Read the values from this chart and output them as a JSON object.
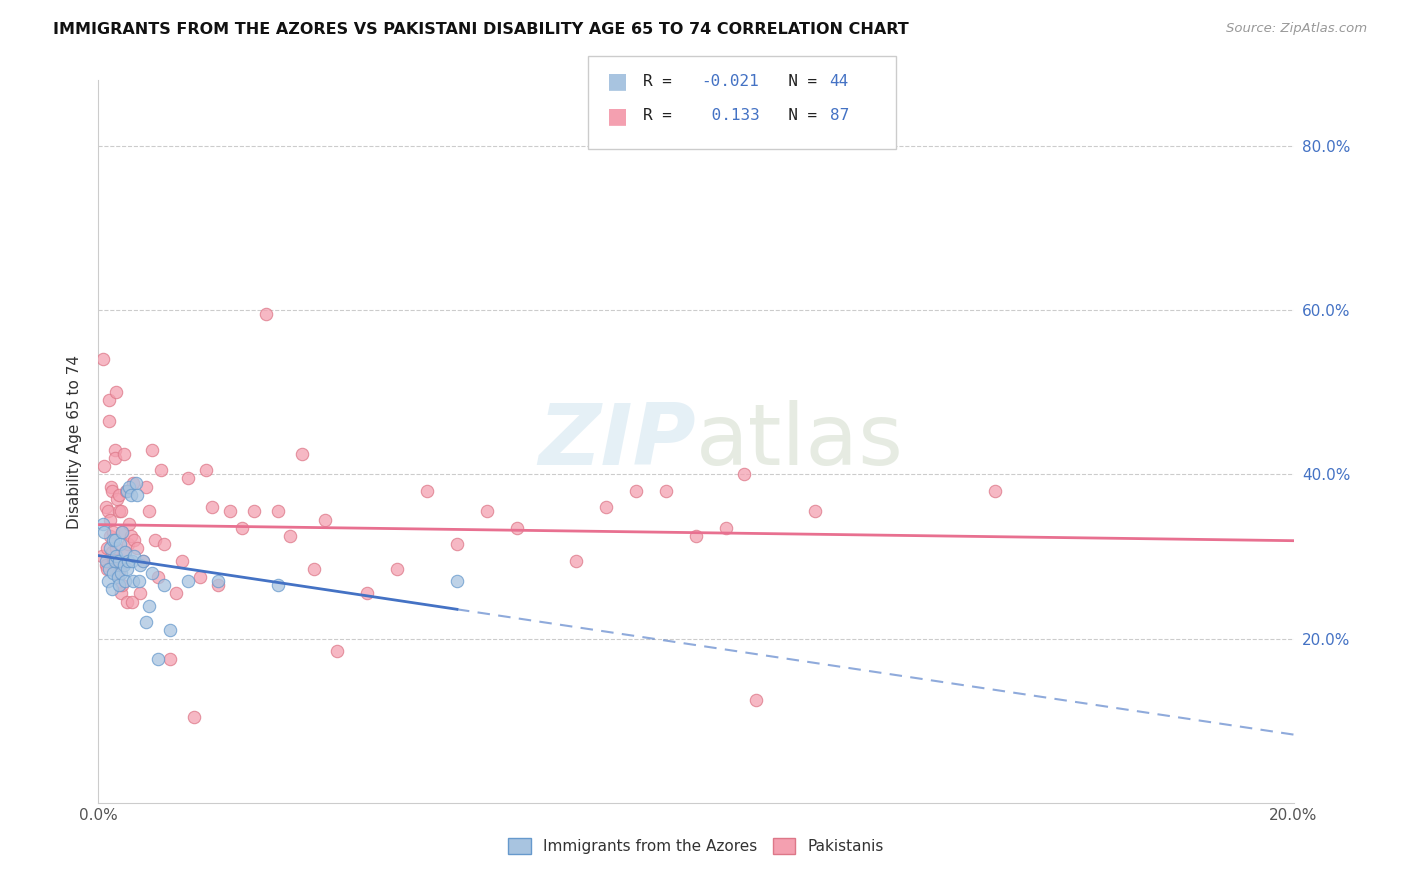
{
  "title": "IMMIGRANTS FROM THE AZORES VS PAKISTANI DISABILITY AGE 65 TO 74 CORRELATION CHART",
  "source": "Source: ZipAtlas.com",
  "ylabel": "Disability Age 65 to 74",
  "ytick_labels": [
    "20.0%",
    "40.0%",
    "60.0%",
    "80.0%"
  ],
  "ytick_values": [
    0.2,
    0.4,
    0.6,
    0.8
  ],
  "xmin": 0.0,
  "xmax": 0.2,
  "ymin": 0.0,
  "ymax": 0.88,
  "legend_label1": "Immigrants from the Azores",
  "legend_label2": "Pakistanis",
  "color_azores_fill": "#a8c4e0",
  "color_azores_edge": "#6699cc",
  "color_pakistani_fill": "#f4a0b0",
  "color_pakistani_edge": "#dd7788",
  "color_azores_line": "#4472c4",
  "color_pakistani_line": "#e87090",
  "azores_x": [
    0.0008,
    0.001,
    0.0013,
    0.0016,
    0.0018,
    0.002,
    0.0022,
    0.0024,
    0.0025,
    0.0027,
    0.0028,
    0.003,
    0.0032,
    0.0034,
    0.0035,
    0.0036,
    0.0038,
    0.004,
    0.0042,
    0.0044,
    0.0045,
    0.0047,
    0.0048,
    0.005,
    0.0052,
    0.0054,
    0.0056,
    0.0058,
    0.006,
    0.0063,
    0.0065,
    0.0068,
    0.007,
    0.0075,
    0.008,
    0.0085,
    0.009,
    0.01,
    0.011,
    0.012,
    0.015,
    0.02,
    0.03,
    0.06
  ],
  "azores_y": [
    0.34,
    0.33,
    0.295,
    0.27,
    0.285,
    0.31,
    0.26,
    0.28,
    0.32,
    0.295,
    0.32,
    0.3,
    0.275,
    0.265,
    0.295,
    0.315,
    0.28,
    0.33,
    0.29,
    0.305,
    0.27,
    0.285,
    0.38,
    0.295,
    0.385,
    0.375,
    0.295,
    0.27,
    0.3,
    0.39,
    0.375,
    0.27,
    0.29,
    0.295,
    0.22,
    0.24,
    0.28,
    0.175,
    0.265,
    0.21,
    0.27,
    0.27,
    0.265,
    0.27
  ],
  "pakistani_x": [
    0.0006,
    0.0008,
    0.001,
    0.0012,
    0.0013,
    0.0014,
    0.0015,
    0.0016,
    0.0017,
    0.0018,
    0.0019,
    0.002,
    0.0021,
    0.0022,
    0.0023,
    0.0024,
    0.0025,
    0.0026,
    0.0027,
    0.0028,
    0.0029,
    0.003,
    0.0031,
    0.0032,
    0.0033,
    0.0034,
    0.0035,
    0.0036,
    0.0037,
    0.0038,
    0.0039,
    0.004,
    0.0042,
    0.0044,
    0.0046,
    0.0048,
    0.005,
    0.0052,
    0.0054,
    0.0056,
    0.0058,
    0.006,
    0.0065,
    0.007,
    0.0075,
    0.008,
    0.0085,
    0.009,
    0.0095,
    0.01,
    0.0105,
    0.011,
    0.012,
    0.013,
    0.014,
    0.015,
    0.016,
    0.017,
    0.018,
    0.019,
    0.02,
    0.022,
    0.024,
    0.026,
    0.028,
    0.03,
    0.032,
    0.034,
    0.036,
    0.038,
    0.04,
    0.045,
    0.05,
    0.055,
    0.06,
    0.065,
    0.07,
    0.08,
    0.085,
    0.09,
    0.095,
    0.1,
    0.105,
    0.108,
    0.11,
    0.12,
    0.15
  ],
  "pakistani_y": [
    0.3,
    0.54,
    0.41,
    0.29,
    0.36,
    0.285,
    0.31,
    0.355,
    0.49,
    0.465,
    0.345,
    0.325,
    0.385,
    0.305,
    0.38,
    0.295,
    0.33,
    0.295,
    0.43,
    0.42,
    0.31,
    0.5,
    0.37,
    0.28,
    0.295,
    0.355,
    0.375,
    0.285,
    0.355,
    0.255,
    0.33,
    0.265,
    0.425,
    0.305,
    0.38,
    0.245,
    0.315,
    0.34,
    0.325,
    0.245,
    0.39,
    0.32,
    0.31,
    0.255,
    0.295,
    0.385,
    0.355,
    0.43,
    0.32,
    0.275,
    0.405,
    0.315,
    0.175,
    0.255,
    0.295,
    0.395,
    0.105,
    0.275,
    0.405,
    0.36,
    0.265,
    0.355,
    0.335,
    0.355,
    0.595,
    0.355,
    0.325,
    0.425,
    0.285,
    0.345,
    0.185,
    0.255,
    0.285,
    0.38,
    0.315,
    0.355,
    0.335,
    0.295,
    0.36,
    0.38,
    0.38,
    0.325,
    0.335,
    0.4,
    0.125,
    0.355,
    0.38
  ]
}
